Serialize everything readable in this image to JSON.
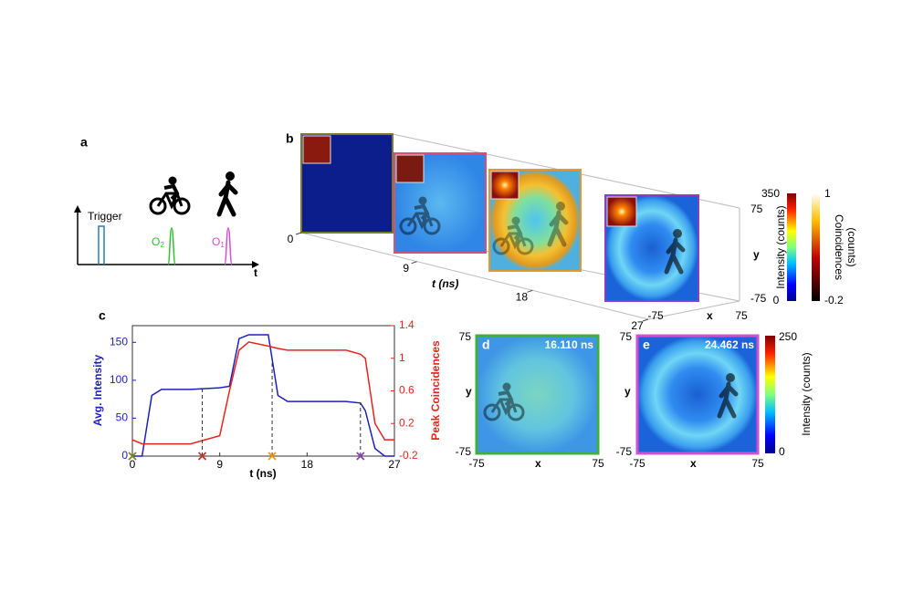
{
  "panel_a": {
    "label": "a",
    "trigger": "Trigger",
    "o2": "O",
    "o2_sub": "2",
    "o1": "O",
    "o1_sub": "1",
    "axis_label": "t",
    "pulse_colors": [
      "#2b7bba",
      "#2fbf2f",
      "#d14fd1"
    ]
  },
  "panel_b": {
    "label": "b",
    "t_label": "t (ns)",
    "t_ticks": [
      0,
      9,
      18,
      27
    ],
    "x_label": "x",
    "x_ticks": [
      -75,
      75
    ],
    "y_label": "y",
    "y_ticks": [
      75,
      -75
    ],
    "frame_colors": [
      "#7d7a2a",
      "#d4527a",
      "#e8962a",
      "#8a3fc0"
    ],
    "colorbar_intensity": {
      "title": "Intensity (counts)",
      "max": 350,
      "min": 0
    },
    "colorbar_coincidences": {
      "title_lines": [
        "Coincidences",
        "(counts)"
      ],
      "max": 1,
      "min": -0.2
    }
  },
  "chart_data": {
    "type": "line",
    "label": "c",
    "xlabel": "t (ns)",
    "ylabel": "Avg. Intensity",
    "y2label": "Peak Coincidences",
    "x": [
      0,
      1,
      2,
      3,
      6,
      9,
      10,
      11,
      12,
      14,
      15,
      16,
      18,
      22,
      23.5,
      24,
      25,
      26,
      27
    ],
    "series": [
      {
        "color": "#1f1fbf",
        "values": [
          0,
          0,
          80,
          88,
          88,
          90,
          92,
          155,
          160,
          160,
          80,
          72,
          72,
          72,
          70,
          60,
          10,
          0,
          0
        ]
      },
      {
        "color": "#e8231c",
        "axis": "y2",
        "values": [
          0,
          -0.05,
          -0.05,
          -0.05,
          -0.05,
          0.05,
          0.6,
          1.1,
          1.2,
          1.15,
          1.12,
          1.1,
          1.1,
          1.1,
          1.05,
          1.0,
          0.2,
          0,
          0
        ]
      }
    ],
    "xlim": [
      0,
      27
    ],
    "xticks": [
      0,
      9,
      18,
      27
    ],
    "ylim": [
      0,
      172
    ],
    "yticks": [
      0,
      50,
      100,
      150
    ],
    "y2lim": [
      -0.2,
      1.4
    ],
    "y2ticks": [
      -0.2,
      0.2,
      0.6,
      1,
      1.4
    ],
    "markers": [
      {
        "x": 0,
        "color": "#7a8a1a"
      },
      {
        "x": 7.2,
        "color": "#c0392b"
      },
      {
        "x": 14.4,
        "color": "#f39c12"
      },
      {
        "x": 23.5,
        "color": "#8e44ad"
      }
    ]
  },
  "panel_d": {
    "label": "d",
    "time": "16.110 ns",
    "x_label": "x",
    "x_ticks": [
      -75,
      75
    ],
    "y_label": "y",
    "y_ticks": [
      75,
      -75
    ],
    "frame_color": "#3fae3f"
  },
  "panel_e": {
    "label": "e",
    "time": "24.462 ns",
    "x_label": "x",
    "x_ticks": [
      -75,
      75
    ],
    "y_label": "y",
    "y_ticks": [
      75,
      -75
    ],
    "frame_color": "#d14fd1",
    "colorbar": {
      "title": "Intensity (counts)",
      "max": 250,
      "min": 0
    }
  }
}
